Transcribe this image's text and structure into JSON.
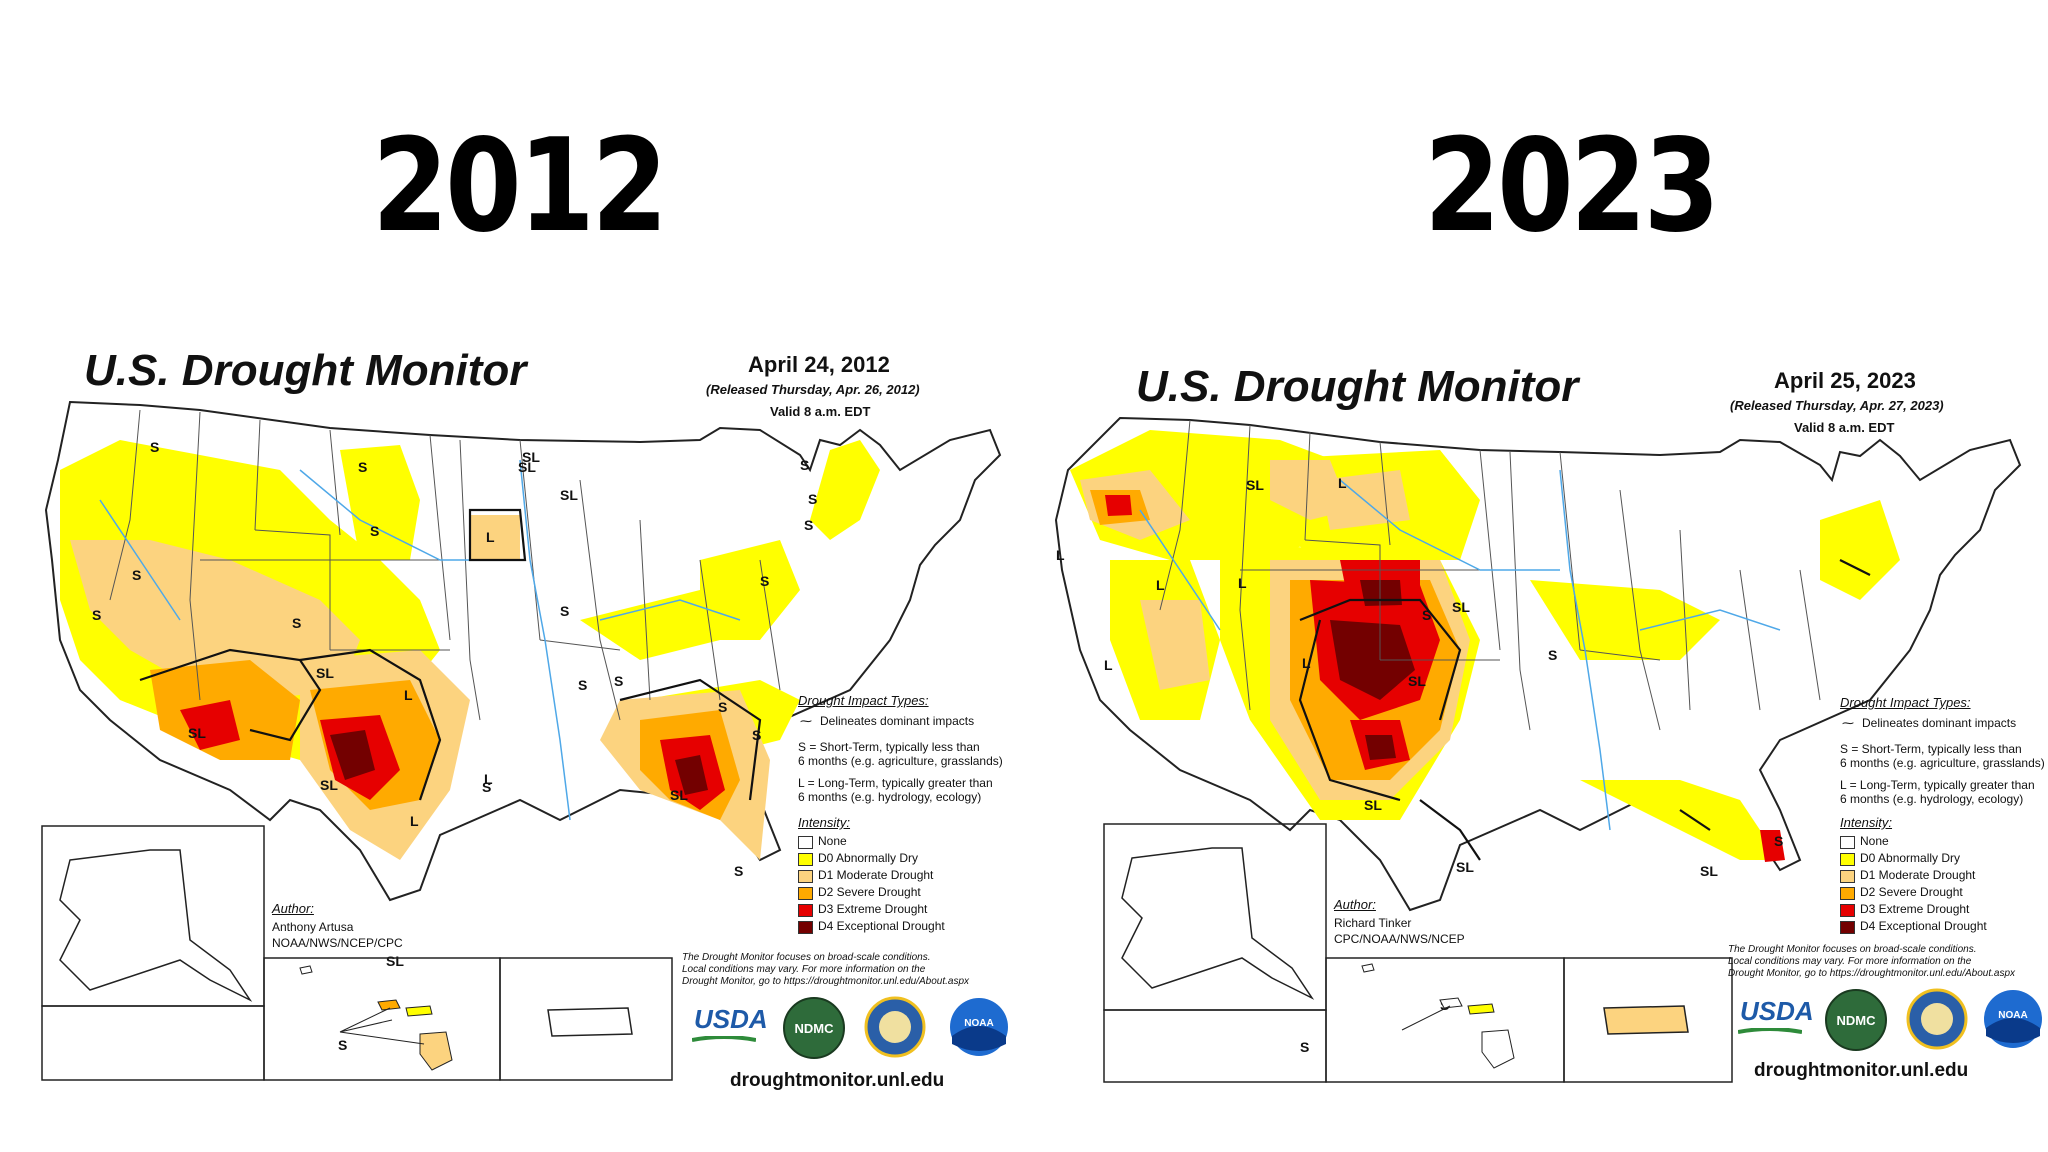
{
  "headings": {
    "left_year": "2012",
    "right_year": "2023"
  },
  "maps": [
    {
      "title": "U.S. Drought Monitor",
      "date": "April 24, 2012",
      "released": "(Released Thursday, Apr. 26, 2012)",
      "valid": "Valid 8 a.m. EDT",
      "impact_title": "Drought Impact Types:",
      "impact_line": "Delineates dominant impacts",
      "short_term_1": "S = Short-Term, typically less than",
      "short_term_2": "6 months (e.g. agriculture, grasslands)",
      "long_term_1": "L = Long-Term, typically greater than",
      "long_term_2": "6 months (e.g. hydrology, ecology)",
      "intensity_title": "Intensity:",
      "legend": [
        "None",
        "D0 Abnormally Dry",
        "D1 Moderate Drought",
        "D2 Severe Drought",
        "D3 Extreme Drought",
        "D4 Exceptional Drought"
      ],
      "author_label": "Author:",
      "author_name": "Anthony Artusa",
      "author_org": "NOAA/NWS/NCEP/CPC",
      "disclaimer_1": "The Drought Monitor focuses on broad-scale conditions.",
      "disclaimer_2": "Local conditions may vary. For more information on the",
      "disclaimer_3": "Drought Monitor, go to https://droughtmonitor.unl.edu/About.aspx",
      "usda": "USDA",
      "ndmc": "NDMC",
      "noaa": "NOAA",
      "site": "droughtmonitor.unl.edu",
      "map_labels": [
        "S",
        "S",
        "S",
        "S",
        "L",
        "SL",
        "SL",
        "S",
        "S",
        "S",
        "S",
        "S",
        "SL",
        "SL",
        "S",
        "SL",
        "L",
        "SL",
        "S",
        "S",
        "SL",
        "S",
        "S",
        "L",
        "L",
        "S",
        "S",
        "S",
        "SL",
        "S"
      ]
    },
    {
      "title": "U.S. Drought Monitor",
      "date": "April 25, 2023",
      "released": "(Released Thursday, Apr. 27, 2023)",
      "valid": "Valid 8 a.m. EDT",
      "impact_title": "Drought Impact Types:",
      "impact_line": "Delineates dominant impacts",
      "short_term_1": "S = Short-Term, typically less than",
      "short_term_2": "6 months (e.g. agriculture, grasslands)",
      "long_term_1": "L = Long-Term, typically greater than",
      "long_term_2": "6 months (e.g. hydrology, ecology)",
      "intensity_title": "Intensity:",
      "legend": [
        "None",
        "D0 Abnormally Dry",
        "D1 Moderate Drought",
        "D2 Severe Drought",
        "D3 Extreme Drought",
        "D4 Exceptional Drought"
      ],
      "author_label": "Author:",
      "author_name": "Richard Tinker",
      "author_org": "CPC/NOAA/NWS/NCEP",
      "disclaimer_1": "The Drought Monitor focuses on broad-scale conditions.",
      "disclaimer_2": "Local conditions may vary. For more information on the",
      "disclaimer_3": "Drought Monitor, go to https://droughtmonitor.unl.edu/About.aspx",
      "usda": "USDA",
      "ndmc": "NDMC",
      "noaa": "NOAA",
      "site": "droughtmonitor.unl.edu",
      "map_labels": [
        "SL",
        "L",
        "L",
        "L",
        "L",
        "L",
        "L",
        "SL",
        "S",
        "S",
        "SL",
        "SL",
        "SL",
        "S",
        "SL",
        "S",
        "S"
      ]
    }
  ],
  "colors": {
    "none": "#ffffff",
    "d0": "#ffff00",
    "d1": "#fcd37f",
    "d2": "#ffaa00",
    "d3": "#e60000",
    "d4": "#730000",
    "water": "#4fa8e8",
    "border": "#222222"
  }
}
